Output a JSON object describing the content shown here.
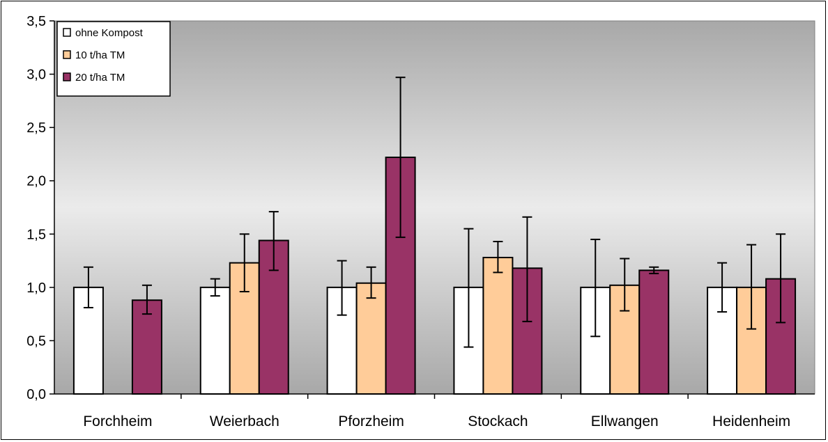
{
  "chart_data": {
    "type": "bar",
    "title": "",
    "xlabel": "",
    "ylabel": "",
    "ylim": [
      0,
      3.5
    ],
    "yticks": [
      "0,0",
      "0,5",
      "1,0",
      "1,5",
      "2,0",
      "2,5",
      "3,0",
      "3,5"
    ],
    "categories": [
      "Forchheim",
      "Weierbach",
      "Pforzheim",
      "Stockach",
      "Ellwangen",
      "Heidenheim"
    ],
    "series": [
      {
        "name": "ohne Kompost",
        "color": "#ffffff",
        "values": [
          1.0,
          1.0,
          1.0,
          1.0,
          1.0,
          1.0
        ],
        "error_low": [
          0.81,
          0.92,
          0.74,
          0.44,
          0.54,
          0.77
        ],
        "error_high": [
          1.19,
          1.08,
          1.25,
          1.55,
          1.45,
          1.23
        ]
      },
      {
        "name": "10 t/ha TM",
        "color": "#ffcc99",
        "values": [
          null,
          1.23,
          1.04,
          1.28,
          1.02,
          1.0
        ],
        "error_low": [
          null,
          0.96,
          0.9,
          1.14,
          0.78,
          0.61
        ],
        "error_high": [
          null,
          1.5,
          1.19,
          1.43,
          1.27,
          1.4
        ]
      },
      {
        "name": "20 t/ha TM",
        "color": "#993366",
        "values": [
          0.88,
          1.44,
          2.22,
          1.18,
          1.16,
          1.08
        ],
        "error_low": [
          0.75,
          1.16,
          1.47,
          0.68,
          1.13,
          0.67
        ],
        "error_high": [
          1.02,
          1.71,
          2.97,
          1.66,
          1.19,
          1.5
        ]
      }
    ],
    "grid": false,
    "background": "gradient gray",
    "legend_position": "top-left"
  }
}
